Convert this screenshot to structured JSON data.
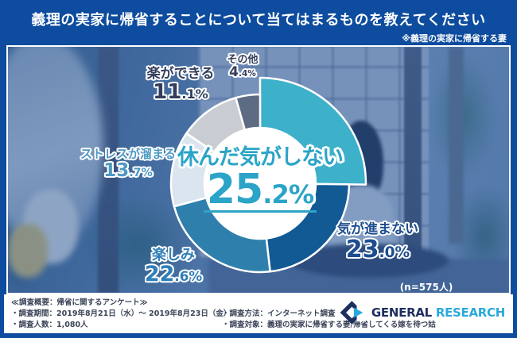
{
  "banner": {
    "title": "義理の実家に帰省することについて当てはまるものを教えてください",
    "note": "※義理の実家に帰省する妻"
  },
  "chart_data": {
    "type": "pie",
    "donut": true,
    "title": "義理の実家に帰省することについて当てはまるものを教えてください",
    "unit": "%",
    "n_label": "(n=575人)",
    "legend_position": "around-slices",
    "slices": [
      {
        "id": "yasunda",
        "label": "休んだ気がしない",
        "value": 25.2,
        "color": "#3db0ca",
        "label_color": "#2ba4c8",
        "emphasized": true
      },
      {
        "id": "kiga-susumanai",
        "label": "気が進まない",
        "value": 23.0,
        "color": "#115a94",
        "label_color": "#1c4d90"
      },
      {
        "id": "tanoshimi",
        "label": "楽しみ",
        "value": 22.6,
        "color": "#2f7fad",
        "label_color": "#2f7fb8"
      },
      {
        "id": "stress",
        "label": "ストレスが溜まる",
        "value": 13.7,
        "color": "#dbe5ef",
        "label_color": "#4f9ac2"
      },
      {
        "id": "raku",
        "label": "楽ができる",
        "value": 11.1,
        "color": "#c9cdd3",
        "label_color": "#333e5c"
      },
      {
        "id": "sonota",
        "label": "その他",
        "value": 4.4,
        "color": "#5d6b83",
        "label_color": "#333e5c"
      }
    ]
  },
  "footer": {
    "heading": "≪調査概要：帰省に関するアンケート≫",
    "period": "・調査期間：2019年8月21日（水）～ 2019年8月23日（金）",
    "people": "・調査人数：1,080人",
    "method": "・調査方法：インターネット調査",
    "target": "・調査対象：義理の実家に帰省する妻/帰省してくる嫁を待つ姑",
    "logo": {
      "text_primary": "GENERAL",
      "text_secondary": "RESEARCH",
      "color_primary": "#1d2f5f",
      "color_secondary": "#2aa9dc"
    }
  },
  "colors": {
    "frame_blue": "#0d4c9e",
    "center_underline": "#2fa3c6",
    "photo_overlay": "rgba(21,72,148,0.40)"
  }
}
